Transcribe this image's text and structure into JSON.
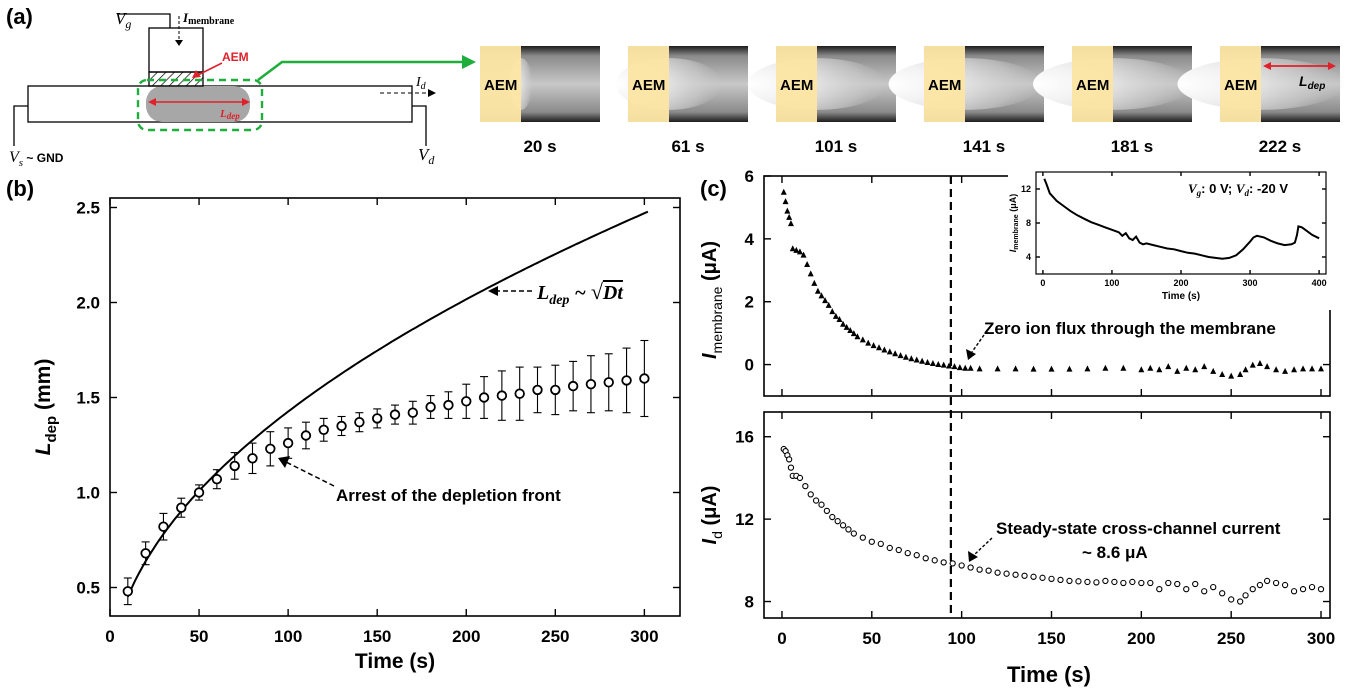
{
  "panel_labels": {
    "a": "(a)",
    "b": "(b)",
    "c": "(c)"
  },
  "colors": {
    "aem_fill": "#fbe4a4",
    "annotation_red": "#e0202a",
    "zoom_green": "#1fae3c",
    "depletion_gray": "#a7a7a7"
  },
  "schematic": {
    "vg": "V",
    "vg_sub": "g",
    "imem": "I",
    "imem_sub": "membrane",
    "aem": "AEM",
    "id": "I",
    "id_sub": "d",
    "vs": "V",
    "vs_sub": "s",
    "vs_suffix": " ~ GND",
    "vd": "V",
    "vd_sub": "d",
    "ldep": "L",
    "ldep_sub": "dep"
  },
  "snapshots": {
    "aem_label": "AEM",
    "ldep": "L",
    "ldep_sub": "dep",
    "frames": [
      {
        "time": "20 s",
        "front": 0.02
      },
      {
        "time": "61 s",
        "front": 0.25
      },
      {
        "time": "101 s",
        "front": 0.34
      },
      {
        "time": "141 s",
        "front": 0.38
      },
      {
        "time": "181 s",
        "front": 0.4
      },
      {
        "time": "222 s",
        "front": 0.42
      }
    ]
  },
  "chart_data": [
    {
      "id": "b",
      "type": "scatter",
      "xlabel": "Time (s)",
      "ylabel_main": "L",
      "ylabel_sub": "dep",
      "ylabel_unit": " (mm)",
      "xlim": [
        0,
        320
      ],
      "ylim": [
        0.35,
        2.55
      ],
      "xticks": [
        0,
        50,
        100,
        150,
        200,
        250,
        300
      ],
      "yticks": [
        0.5,
        1.0,
        1.5,
        2.0,
        2.5
      ],
      "ytick_labels": [
        "0.5",
        "1.0",
        "1.5",
        "2.0",
        "2.5"
      ],
      "series": [
        {
          "points": [
            [
              10,
              0.48,
              0.07
            ],
            [
              20,
              0.68,
              0.06
            ],
            [
              30,
              0.82,
              0.07
            ],
            [
              40,
              0.92,
              0.05
            ],
            [
              50,
              1.0,
              0.04
            ],
            [
              60,
              1.07,
              0.05
            ],
            [
              70,
              1.14,
              0.07
            ],
            [
              80,
              1.18,
              0.08
            ],
            [
              90,
              1.23,
              0.09
            ],
            [
              100,
              1.26,
              0.08
            ],
            [
              110,
              1.3,
              0.07
            ],
            [
              120,
              1.33,
              0.06
            ],
            [
              130,
              1.35,
              0.05
            ],
            [
              140,
              1.37,
              0.05
            ],
            [
              150,
              1.39,
              0.05
            ],
            [
              160,
              1.41,
              0.05
            ],
            [
              170,
              1.42,
              0.06
            ],
            [
              180,
              1.45,
              0.06
            ],
            [
              190,
              1.46,
              0.07
            ],
            [
              200,
              1.48,
              0.09
            ],
            [
              210,
              1.5,
              0.11
            ],
            [
              220,
              1.51,
              0.13
            ],
            [
              230,
              1.52,
              0.14
            ],
            [
              240,
              1.54,
              0.12
            ],
            [
              250,
              1.54,
              0.13
            ],
            [
              260,
              1.56,
              0.13
            ],
            [
              270,
              1.57,
              0.15
            ],
            [
              280,
              1.58,
              0.15
            ],
            [
              290,
              1.59,
              0.17
            ],
            [
              300,
              1.6,
              0.2
            ]
          ]
        }
      ],
      "fit_curve": {
        "coef": 0.1426,
        "x_range": [
          10,
          303
        ]
      },
      "annotations": {
        "fit_label_main": "L",
        "fit_label_sub": "dep",
        "fit_label_rest": " ~ ",
        "fit_label_sqrt": "Dt",
        "arrest_label": "Arrest of the depletion front"
      }
    },
    {
      "id": "c_top",
      "type": "scatter",
      "ylabel_main": "I",
      "ylabel_sub": "membrane",
      "ylabel_unit": " (μA)",
      "xlim": [
        -10,
        305
      ],
      "ylim": [
        -1.0,
        6.0
      ],
      "yticks": [
        0,
        2,
        4,
        6
      ],
      "series": [
        {
          "x": [
            1,
            2,
            3,
            4,
            5,
            6,
            8,
            10,
            12,
            14,
            16,
            18,
            20,
            22,
            24,
            26,
            28,
            30,
            32,
            34,
            36,
            38,
            40,
            42,
            45,
            48,
            51,
            54,
            57,
            60,
            63,
            66,
            69,
            72,
            75,
            78,
            81,
            84,
            87,
            90,
            93,
            96,
            99,
            102,
            105,
            110,
            120,
            130,
            140,
            150,
            160,
            170,
            180,
            190,
            200,
            205,
            210,
            215,
            220,
            225,
            230,
            235,
            240,
            245,
            250,
            255,
            258,
            262,
            266,
            270,
            275,
            280,
            285,
            290,
            295,
            300
          ],
          "y": [
            5.5,
            5.2,
            4.9,
            4.7,
            4.5,
            3.7,
            3.65,
            3.6,
            3.5,
            3.2,
            2.9,
            2.6,
            2.35,
            2.2,
            2.05,
            1.9,
            1.7,
            1.55,
            1.45,
            1.3,
            1.2,
            1.1,
            1.0,
            0.9,
            0.8,
            0.7,
            0.62,
            0.55,
            0.48,
            0.42,
            0.36,
            0.3,
            0.25,
            0.2,
            0.16,
            0.12,
            0.08,
            0.05,
            0.02,
            0.0,
            -0.03,
            -0.05,
            -0.08,
            -0.1,
            -0.1,
            -0.12,
            -0.12,
            -0.12,
            -0.13,
            -0.13,
            -0.13,
            -0.12,
            -0.1,
            -0.1,
            -0.15,
            -0.1,
            -0.15,
            -0.05,
            -0.2,
            -0.1,
            -0.15,
            -0.05,
            -0.2,
            -0.3,
            -0.35,
            -0.3,
            -0.15,
            0.0,
            0.05,
            -0.05,
            -0.15,
            -0.2,
            -0.15,
            -0.12,
            -0.12,
            -0.12
          ]
        }
      ],
      "annotation": "Zero ion flux through the membrane"
    },
    {
      "id": "c_inset",
      "type": "line",
      "xlabel": "Time (s)",
      "ylabel_main": "I",
      "ylabel_sub": "membrane",
      "ylabel_unit": " (μA)",
      "xlim": [
        -10,
        410
      ],
      "ylim": [
        2,
        14
      ],
      "xticks": [
        0,
        100,
        200,
        300,
        400
      ],
      "yticks": [
        4,
        8,
        12
      ],
      "condition_vg": "V",
      "condition_vg_sub": "g",
      "condition_vg_val": ": 0 V; ",
      "condition_vd": "V",
      "condition_vd_sub": "d",
      "condition_vd_val": ": -20 V",
      "series": [
        {
          "x": [
            2,
            5,
            10,
            20,
            30,
            40,
            50,
            60,
            70,
            80,
            90,
            100,
            110,
            115,
            120,
            125,
            130,
            135,
            140,
            145,
            150,
            160,
            170,
            180,
            190,
            200,
            210,
            220,
            230,
            240,
            250,
            260,
            270,
            280,
            290,
            300,
            305,
            310,
            320,
            330,
            340,
            350,
            360,
            365,
            368,
            370,
            375,
            380,
            390,
            400
          ],
          "y": [
            13.2,
            12.6,
            11.5,
            10.6,
            10.0,
            9.4,
            8.9,
            8.5,
            8.1,
            7.8,
            7.5,
            7.2,
            6.9,
            6.5,
            6.8,
            6.2,
            6.0,
            6.4,
            5.7,
            5.5,
            5.6,
            5.4,
            5.2,
            5.0,
            4.9,
            4.7,
            4.5,
            4.4,
            4.2,
            4.0,
            3.9,
            3.8,
            3.9,
            4.2,
            4.9,
            5.8,
            6.3,
            6.5,
            6.3,
            5.9,
            5.6,
            5.4,
            5.5,
            5.7,
            6.6,
            7.6,
            7.5,
            7.2,
            6.6,
            6.2
          ]
        }
      ]
    },
    {
      "id": "c_bottom",
      "type": "scatter",
      "xlabel": "Time (s)",
      "ylabel_main": "I",
      "ylabel_sub": "d",
      "ylabel_unit": " (μA)",
      "xlim": [
        -10,
        305
      ],
      "ylim": [
        7.2,
        17.2
      ],
      "xticks": [
        0,
        50,
        100,
        150,
        200,
        250,
        300
      ],
      "yticks": [
        8,
        12,
        16
      ],
      "series": [
        {
          "x": [
            1,
            2,
            3,
            4,
            5,
            6,
            8,
            10,
            13,
            16,
            19,
            22,
            25,
            28,
            31,
            34,
            37,
            40,
            45,
            50,
            55,
            60,
            65,
            70,
            75,
            80,
            85,
            90,
            95,
            100,
            105,
            110,
            115,
            120,
            125,
            130,
            135,
            140,
            145,
            150,
            155,
            160,
            165,
            170,
            175,
            180,
            185,
            190,
            195,
            200,
            205,
            210,
            215,
            220,
            225,
            230,
            235,
            240,
            245,
            250,
            255,
            258,
            262,
            266,
            270,
            275,
            280,
            285,
            290,
            295,
            300
          ],
          "y": [
            15.4,
            15.3,
            15.1,
            14.9,
            14.5,
            14.1,
            14.1,
            14.0,
            13.6,
            13.2,
            12.9,
            12.7,
            12.4,
            12.1,
            11.9,
            11.7,
            11.5,
            11.3,
            11.1,
            10.9,
            10.8,
            10.6,
            10.5,
            10.35,
            10.25,
            10.1,
            10.0,
            9.9,
            9.85,
            9.75,
            9.65,
            9.55,
            9.5,
            9.4,
            9.35,
            9.3,
            9.25,
            9.2,
            9.15,
            9.1,
            9.05,
            9.0,
            8.98,
            8.95,
            8.93,
            9.0,
            8.95,
            8.9,
            8.95,
            8.9,
            8.9,
            8.6,
            8.9,
            8.85,
            8.6,
            8.85,
            8.5,
            8.7,
            8.4,
            8.1,
            8.0,
            8.3,
            8.6,
            8.8,
            9.0,
            8.9,
            8.8,
            8.5,
            8.6,
            8.7,
            8.6
          ]
        }
      ],
      "annotation_line1": "Steady-state cross-channel current",
      "annotation_line2": "~ 8.6 μA"
    }
  ],
  "dashed_time_marker": 94
}
